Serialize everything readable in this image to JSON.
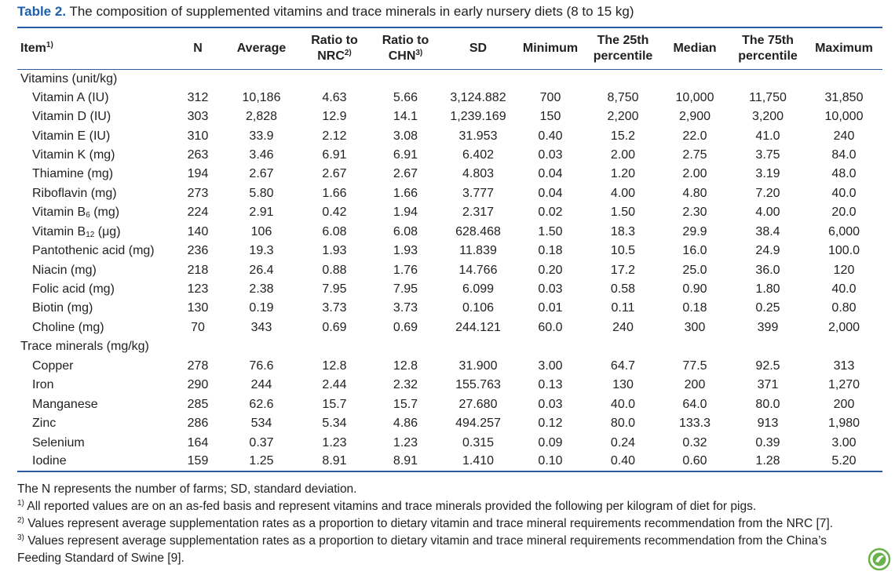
{
  "caption": {
    "label": "Table 2.",
    "text": " The composition of supplemented vitamins and trace minerals in early nursery diets (8 to 15 kg)"
  },
  "table": {
    "header": [
      {
        "line1": "Item",
        "sup": "1)"
      },
      {
        "line1": "N"
      },
      {
        "line1": "Average"
      },
      {
        "line1": "Ratio to",
        "line2": "NRC",
        "sup": "2)"
      },
      {
        "line1": "Ratio to",
        "line2": "CHN",
        "sup": "3)"
      },
      {
        "line1": "SD"
      },
      {
        "line1": "Minimum"
      },
      {
        "line1": "The 25th",
        "line2": "percentile"
      },
      {
        "line1": "Median"
      },
      {
        "line1": "The 75th",
        "line2": "percentile"
      },
      {
        "line1": "Maximum"
      }
    ],
    "groups": [
      {
        "title": "Vitamins (unit/kg)",
        "rows": [
          {
            "item": "Vitamin A (IU)",
            "values": [
              "312",
              "10,186",
              "4.63",
              "5.66",
              "3,124.882",
              "700",
              "8,750",
              "10,000",
              "11,750",
              "31,850"
            ]
          },
          {
            "item": "Vitamin D (IU)",
            "values": [
              "303",
              "2,828",
              "12.9",
              "14.1",
              "1,239.169",
              "150",
              "2,200",
              "2,900",
              "3,200",
              "10,000"
            ]
          },
          {
            "item": "Vitamin E (IU)",
            "values": [
              "310",
              "33.9",
              "2.12",
              "3.08",
              "31.953",
              "0.40",
              "15.2",
              "22.0",
              "41.0",
              "240"
            ]
          },
          {
            "item": "Vitamin K (mg)",
            "values": [
              "263",
              "3.46",
              "6.91",
              "6.91",
              "6.402",
              "0.03",
              "2.00",
              "2.75",
              "3.75",
              "84.0"
            ]
          },
          {
            "item": "Thiamine (mg)",
            "values": [
              "194",
              "2.67",
              "2.67",
              "2.67",
              "4.803",
              "0.04",
              "1.20",
              "2.00",
              "3.19",
              "48.0"
            ]
          },
          {
            "item": "Riboflavin (mg)",
            "values": [
              "273",
              "5.80",
              "1.66",
              "1.66",
              "3.777",
              "0.04",
              "4.00",
              "4.80",
              "7.20",
              "40.0"
            ]
          },
          {
            "item": {
              "text": "Vitamin B",
              "sub": "6",
              "tail": " (mg)"
            },
            "values": [
              "224",
              "2.91",
              "0.42",
              "1.94",
              "2.317",
              "0.02",
              "1.50",
              "2.30",
              "4.00",
              "20.0"
            ]
          },
          {
            "item": {
              "text": "Vitamin B",
              "sub": "12",
              "tail": " (μg)"
            },
            "values": [
              "140",
              "106",
              "6.08",
              "6.08",
              "628.468",
              "1.50",
              "18.3",
              "29.9",
              "38.4",
              "6,000"
            ]
          },
          {
            "item": "Pantothenic acid (mg)",
            "values": [
              "236",
              "19.3",
              "1.93",
              "1.93",
              "11.839",
              "0.18",
              "10.5",
              "16.0",
              "24.9",
              "100.0"
            ]
          },
          {
            "item": "Niacin (mg)",
            "values": [
              "218",
              "26.4",
              "0.88",
              "1.76",
              "14.766",
              "0.20",
              "17.2",
              "25.0",
              "36.0",
              "120"
            ]
          },
          {
            "item": "Folic acid (mg)",
            "values": [
              "123",
              "2.38",
              "7.95",
              "7.95",
              "6.099",
              "0.03",
              "0.58",
              "0.90",
              "1.80",
              "40.0"
            ]
          },
          {
            "item": "Biotin (mg)",
            "values": [
              "130",
              "0.19",
              "3.73",
              "3.73",
              "0.106",
              "0.01",
              "0.11",
              "0.18",
              "0.25",
              "0.80"
            ]
          },
          {
            "item": "Choline (mg)",
            "values": [
              "70",
              "343",
              "0.69",
              "0.69",
              "244.121",
              "60.0",
              "240",
              "300",
              "399",
              "2,000"
            ]
          }
        ]
      },
      {
        "title": "Trace minerals (mg/kg)",
        "rows": [
          {
            "item": "Copper",
            "values": [
              "278",
              "76.6",
              "12.8",
              "12.8",
              "31.900",
              "3.00",
              "64.7",
              "77.5",
              "92.5",
              "313"
            ]
          },
          {
            "item": "Iron",
            "values": [
              "290",
              "244",
              "2.44",
              "2.32",
              "155.763",
              "0.13",
              "130",
              "200",
              "371",
              "1,270"
            ]
          },
          {
            "item": "Manganese",
            "values": [
              "285",
              "62.6",
              "15.7",
              "15.7",
              "27.680",
              "0.03",
              "40.0",
              "64.0",
              "80.0",
              "200"
            ]
          },
          {
            "item": "Zinc",
            "values": [
              "286",
              "534",
              "5.34",
              "4.86",
              "494.257",
              "0.12",
              "80.0",
              "133.3",
              "913",
              "1,980"
            ]
          },
          {
            "item": "Selenium",
            "values": [
              "164",
              "0.37",
              "1.23",
              "1.23",
              "0.315",
              "0.09",
              "0.24",
              "0.32",
              "0.39",
              "3.00"
            ]
          },
          {
            "item": "Iodine",
            "values": [
              "159",
              "1.25",
              "8.91",
              "8.91",
              "1.410",
              "0.10",
              "0.40",
              "0.60",
              "1.28",
              "5.20"
            ]
          }
        ]
      }
    ]
  },
  "footnotes": [
    {
      "text": "The N represents the number of farms; SD, standard deviation."
    },
    {
      "sup": "1)",
      "text": " All reported values are on an as-fed basis and represent vitamins and trace minerals provided the following per kilogram of diet for pigs."
    },
    {
      "sup": "2)",
      "text": " Values represent average supplementation rates as a proportion to dietary vitamin and trace mineral requirements recommendation from the NRC [7]."
    },
    {
      "sup": "3)",
      "text": " Values represent average supplementation rates as a proportion to dietary vitamin and trace mineral requirements recommendation from the China’s Feeding Standard of Swine [9]."
    }
  ]
}
